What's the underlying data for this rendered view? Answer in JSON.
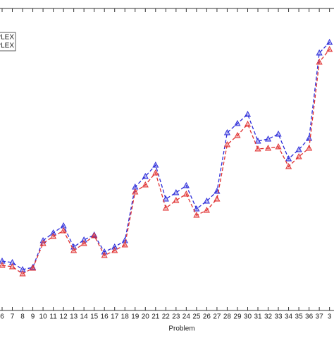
{
  "chart_data": {
    "type": "line",
    "x_label": "Problem",
    "categories": [
      "6",
      "7",
      "8",
      "9",
      "10",
      "11",
      "12",
      "13",
      "14",
      "15",
      "16",
      "17",
      "18",
      "19",
      "20",
      "21",
      "22",
      "23",
      "24",
      "25",
      "26",
      "27",
      "28",
      "29",
      "30",
      "31",
      "32",
      "33",
      "34",
      "35",
      "36",
      "37",
      "3"
    ],
    "series": [
      {
        "name": "PLEX",
        "color": "#2b2bd9",
        "values": [
          85,
          83,
          73,
          76,
          114,
          125,
          135,
          105,
          115,
          122,
          98,
          105,
          114,
          190,
          205,
          221,
          173,
          182,
          192,
          159,
          170,
          184,
          267,
          280,
          293,
          255,
          258,
          265,
          230,
          243,
          259,
          380,
          395
        ]
      },
      {
        "name": "CPLEX",
        "color": "#e03030",
        "values": [
          79,
          77,
          67,
          75,
          110,
          120,
          128,
          100,
          110,
          121,
          93,
          100,
          108,
          183,
          193,
          210,
          160,
          171,
          180,
          150,
          157,
          173,
          250,
          263,
          279,
          244,
          245,
          247,
          219,
          233,
          245,
          367,
          385
        ]
      }
    ],
    "ylim": [
      0,
      443
    ]
  }
}
